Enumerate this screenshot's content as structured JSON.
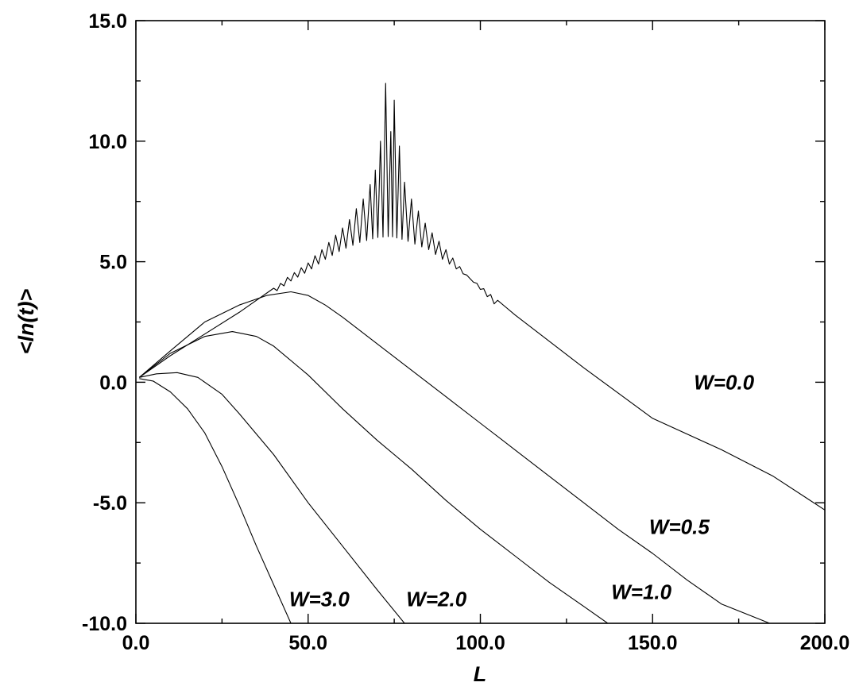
{
  "chart_data": {
    "type": "line",
    "title": "",
    "xlabel": "L",
    "ylabel": "<ln(t)>",
    "xlim": [
      0,
      200
    ],
    "ylim": [
      -10,
      15
    ],
    "x_ticks": [
      {
        "value": 0,
        "label": "0.0"
      },
      {
        "value": 50,
        "label": "50.0"
      },
      {
        "value": 100,
        "label": "100.0"
      },
      {
        "value": 150,
        "label": "150.0"
      },
      {
        "value": 200,
        "label": "200.0"
      }
    ],
    "y_ticks": [
      {
        "value": -10,
        "label": "-10.0"
      },
      {
        "value": -5,
        "label": "-5.0"
      },
      {
        "value": 0,
        "label": "0.0"
      },
      {
        "value": 5,
        "label": "5.0"
      },
      {
        "value": 10,
        "label": "10.0"
      },
      {
        "value": 15,
        "label": "15.0"
      }
    ],
    "x_minor_step": 25,
    "y_minor_step": 2.5,
    "grid": false,
    "legend": "none",
    "series": [
      {
        "name": "W=0.0",
        "label_anchor": {
          "x": 162,
          "y": -0.3
        },
        "envelope": [
          [
            1,
            0.2
          ],
          [
            10,
            1.1
          ],
          [
            20,
            2.0
          ],
          [
            30,
            2.9
          ],
          [
            40,
            3.7
          ],
          [
            45,
            4.2
          ],
          [
            50,
            4.6
          ],
          [
            55,
            5.1
          ],
          [
            60,
            5.5
          ],
          [
            65,
            5.8
          ],
          [
            70,
            6.0
          ],
          [
            74,
            6.05
          ],
          [
            78,
            5.9
          ],
          [
            85,
            5.5
          ],
          [
            90,
            5.0
          ],
          [
            95,
            4.5
          ],
          [
            100,
            4.0
          ],
          [
            105,
            3.4
          ],
          [
            110,
            2.8
          ],
          [
            130,
            0.6
          ],
          [
            150,
            -1.5
          ],
          [
            170,
            -2.8
          ],
          [
            185,
            -3.9
          ],
          [
            200,
            -5.3
          ]
        ],
        "peaks": [
          [
            40,
            3.9
          ],
          [
            42,
            4.1
          ],
          [
            44,
            4.35
          ],
          [
            46,
            4.55
          ],
          [
            48,
            4.75
          ],
          [
            50,
            4.95
          ],
          [
            52,
            5.25
          ],
          [
            54,
            5.5
          ],
          [
            56,
            5.8
          ],
          [
            58,
            6.1
          ],
          [
            60,
            6.4
          ],
          [
            62,
            6.75
          ],
          [
            64,
            7.2
          ],
          [
            66,
            7.6
          ],
          [
            68,
            8.2
          ],
          [
            69.5,
            8.8
          ],
          [
            71,
            10.0
          ],
          [
            72.5,
            12.4
          ],
          [
            74,
            10.4
          ],
          [
            75,
            11.7
          ],
          [
            76.5,
            9.8
          ],
          [
            78,
            8.3
          ],
          [
            80,
            7.6
          ],
          [
            82,
            7.1
          ],
          [
            84,
            6.6
          ],
          [
            86,
            6.2
          ],
          [
            88,
            5.85
          ],
          [
            90,
            5.5
          ],
          [
            92,
            5.15
          ],
          [
            94,
            4.8
          ],
          [
            96,
            4.45
          ],
          [
            98,
            4.15
          ],
          [
            100,
            3.85
          ],
          [
            102,
            3.55
          ],
          [
            104,
            3.25
          ]
        ]
      },
      {
        "name": "W=0.5",
        "label_anchor": {
          "x": 149,
          "y": -6.3
        },
        "points": [
          [
            1,
            0.2
          ],
          [
            10,
            1.3
          ],
          [
            20,
            2.5
          ],
          [
            30,
            3.2
          ],
          [
            38,
            3.6
          ],
          [
            45,
            3.75
          ],
          [
            50,
            3.6
          ],
          [
            55,
            3.2
          ],
          [
            60,
            2.7
          ],
          [
            70,
            1.6
          ],
          [
            80,
            0.5
          ],
          [
            90,
            -0.6
          ],
          [
            100,
            -1.7
          ],
          [
            110,
            -2.8
          ],
          [
            120,
            -3.9
          ],
          [
            130,
            -5.0
          ],
          [
            140,
            -6.1
          ],
          [
            150,
            -7.1
          ],
          [
            160,
            -8.2
          ],
          [
            170,
            -9.2
          ],
          [
            184,
            -10.0
          ]
        ]
      },
      {
        "name": "W=1.0",
        "label_anchor": {
          "x": 138,
          "y": -9.0
        },
        "points": [
          [
            1,
            0.2
          ],
          [
            10,
            1.2
          ],
          [
            20,
            1.9
          ],
          [
            28,
            2.1
          ],
          [
            35,
            1.9
          ],
          [
            40,
            1.5
          ],
          [
            50,
            0.3
          ],
          [
            60,
            -1.1
          ],
          [
            70,
            -2.4
          ],
          [
            80,
            -3.6
          ],
          [
            90,
            -4.9
          ],
          [
            100,
            -6.1
          ],
          [
            110,
            -7.2
          ],
          [
            120,
            -8.3
          ],
          [
            130,
            -9.3
          ],
          [
            137,
            -10.0
          ]
        ]
      },
      {
        "name": "W=2.0",
        "label_anchor": {
          "x": 78.5,
          "y": -9.3
        },
        "points": [
          [
            1,
            0.2
          ],
          [
            6,
            0.35
          ],
          [
            12,
            0.4
          ],
          [
            18,
            0.2
          ],
          [
            25,
            -0.5
          ],
          [
            30,
            -1.3
          ],
          [
            40,
            -3.0
          ],
          [
            50,
            -5.0
          ],
          [
            60,
            -6.8
          ],
          [
            70,
            -8.6
          ],
          [
            78,
            -10.0
          ]
        ]
      },
      {
        "name": "W=3.0",
        "label_anchor": {
          "x": 44.5,
          "y": -9.3
        },
        "points": [
          [
            1,
            0.15
          ],
          [
            5,
            0.05
          ],
          [
            10,
            -0.4
          ],
          [
            15,
            -1.1
          ],
          [
            20,
            -2.1
          ],
          [
            25,
            -3.5
          ],
          [
            30,
            -5.1
          ],
          [
            35,
            -6.8
          ],
          [
            40,
            -8.4
          ],
          [
            45,
            -10.0
          ]
        ]
      }
    ]
  }
}
